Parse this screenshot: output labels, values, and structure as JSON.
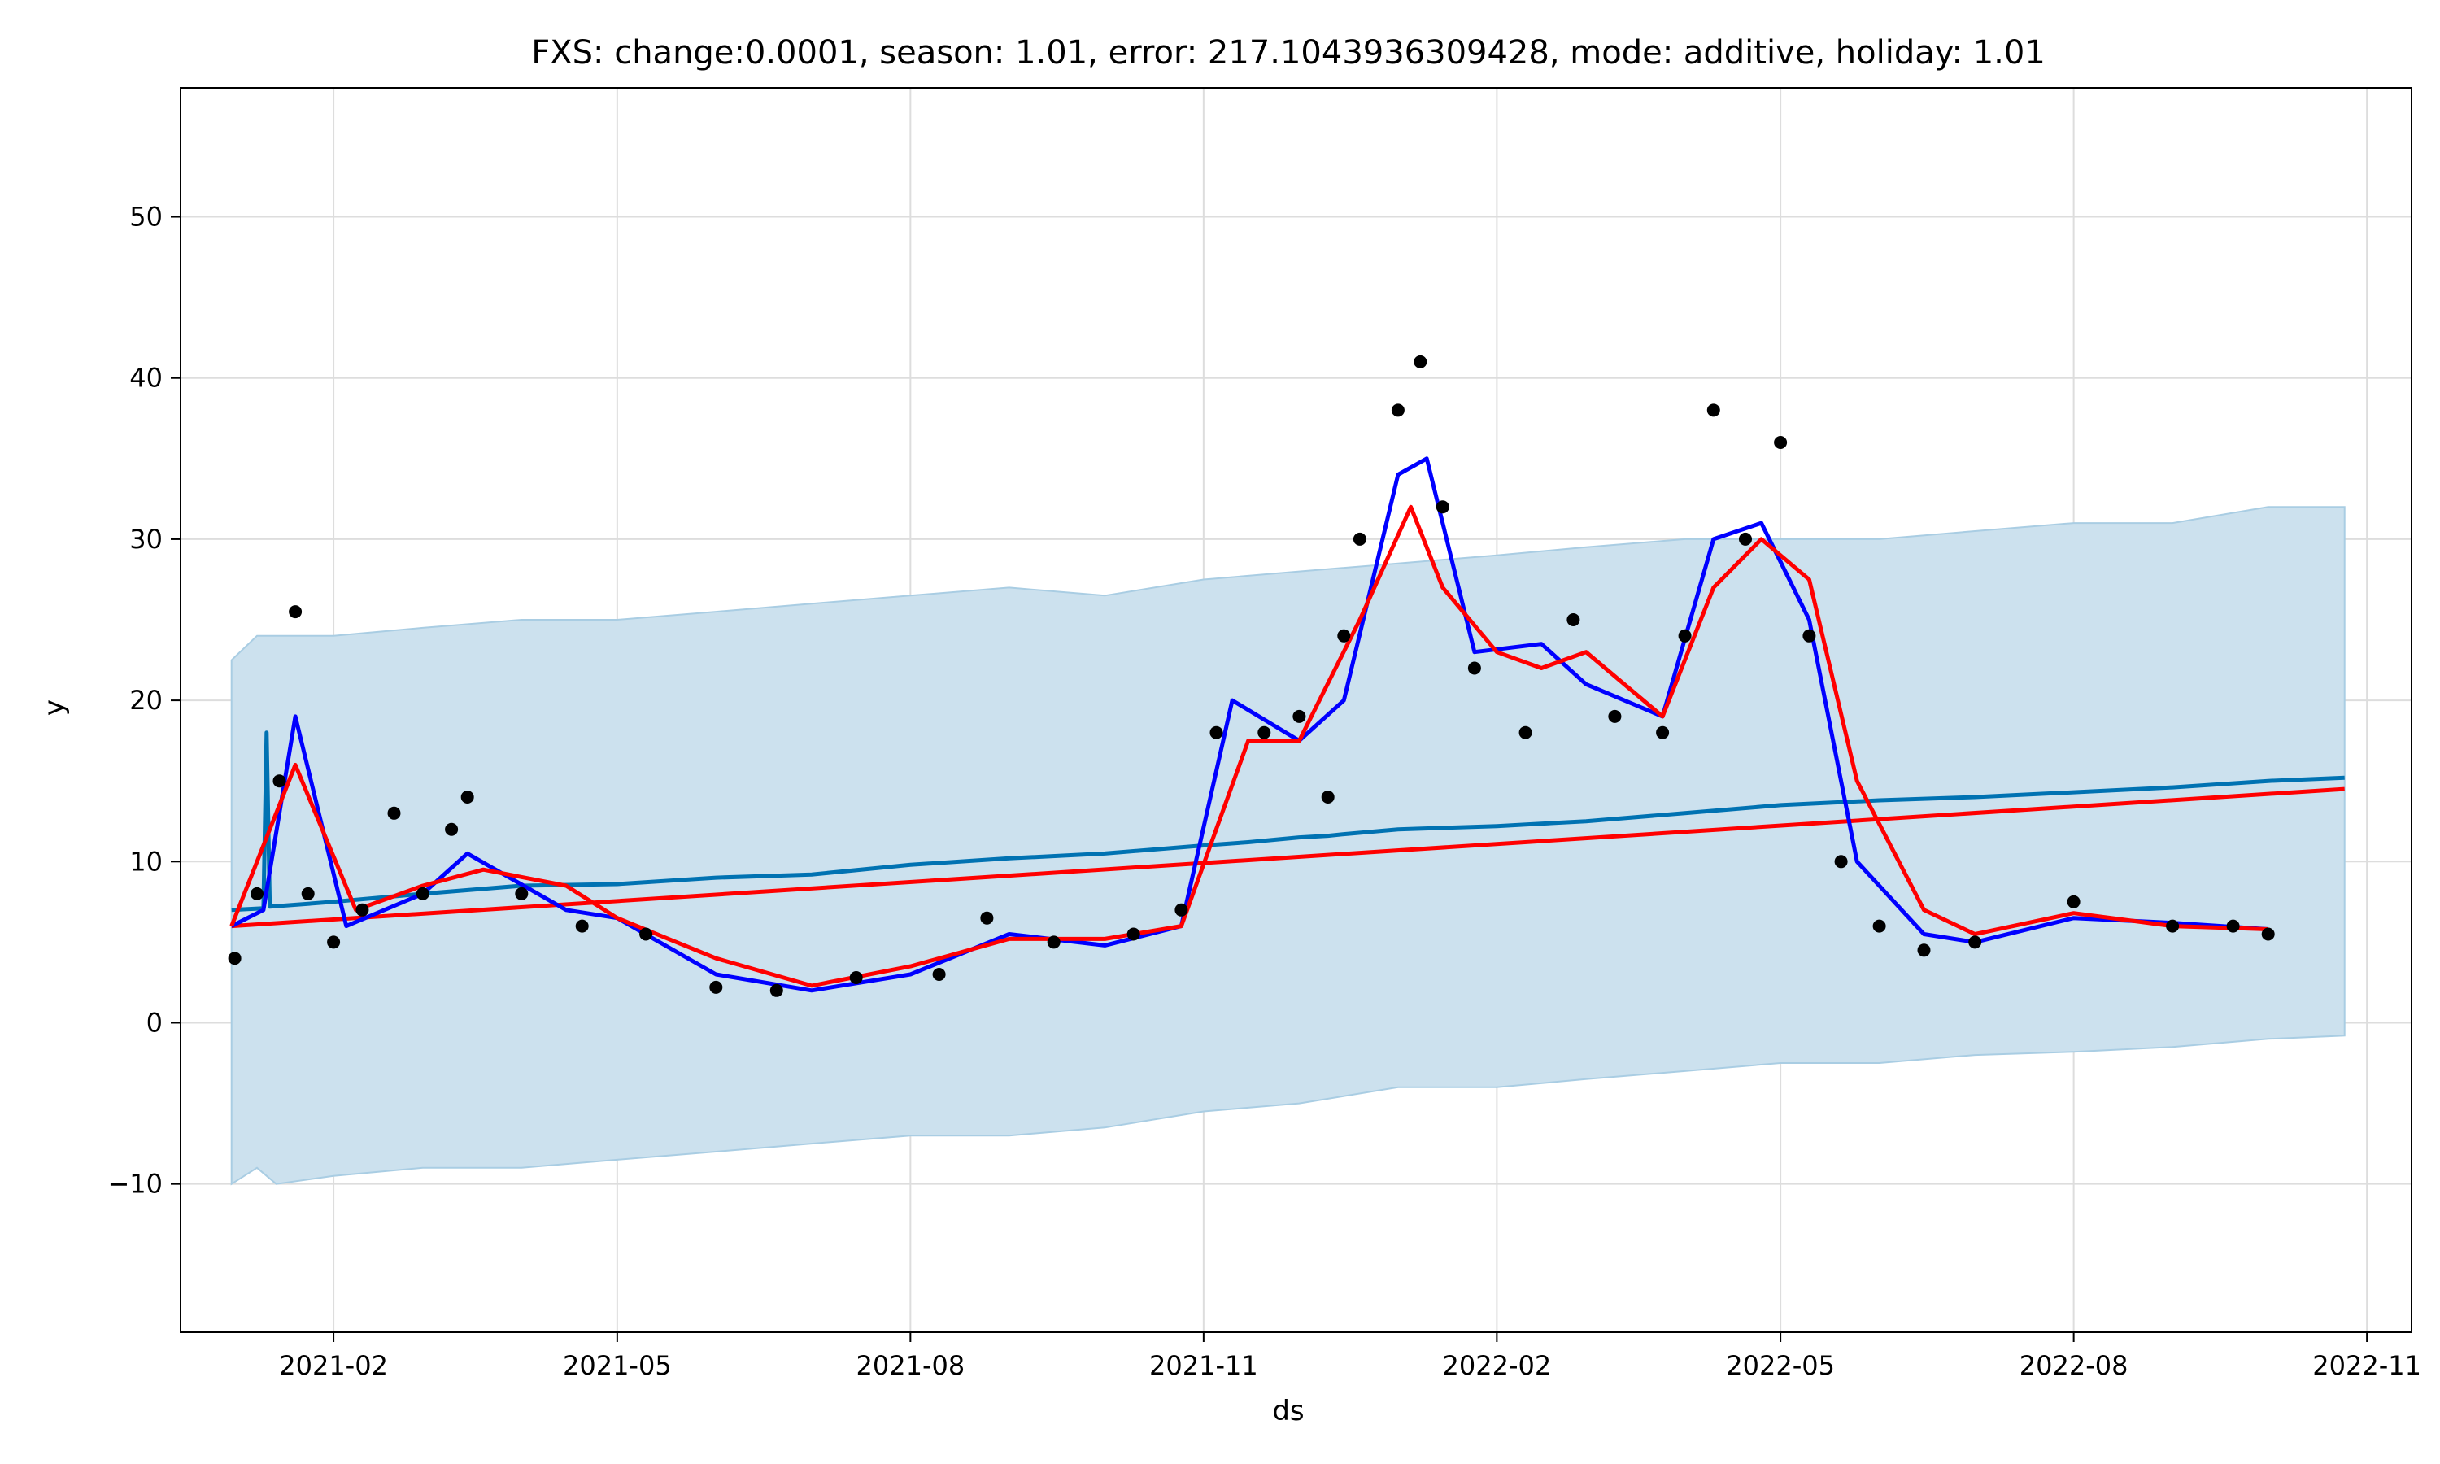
{
  "chart_data": {
    "type": "line",
    "title": "FXS: change:0.0001, season: 1.01, error: 217.1043936309428, mode: additive, holiday: 1.01",
    "xlabel": "ds",
    "ylabel": "y",
    "xlim": [
      "2020-12-15",
      "2022-11-15"
    ],
    "ylim": [
      -19.2,
      58.0
    ],
    "x_ticks": [
      "2021-02",
      "2021-05",
      "2021-08",
      "2021-11",
      "2022-02",
      "2022-05",
      "2022-08",
      "2022-11"
    ],
    "y_ticks": [
      -10,
      0,
      10,
      20,
      30,
      40,
      50
    ],
    "grid": true,
    "colors": {
      "observed": "#000000",
      "forecast": "#0072B2",
      "band": "#cce1ee",
      "band_edge": "#a9cde3",
      "trend": "#ff0000",
      "rolling": "#0000ff",
      "grid": "#dddddd"
    },
    "series": [
      {
        "kind": "band",
        "x": [
          "2020-12-31",
          "2021-01-08",
          "2021-01-14",
          "2021-02-01",
          "2021-03-01",
          "2021-04-01",
          "2021-05-01",
          "2021-06-01",
          "2021-07-01",
          "2021-08-01",
          "2021-09-01",
          "2021-10-01",
          "2021-11-01",
          "2021-12-01",
          "2022-01-01",
          "2022-02-01",
          "2022-03-01",
          "2022-04-01",
          "2022-05-01",
          "2022-06-01",
          "2022-07-01",
          "2022-08-01",
          "2022-09-01",
          "2022-10-01",
          "2022-10-25"
        ],
        "lower": [
          -10,
          -9,
          -10,
          -9.5,
          -9,
          -9,
          -8.5,
          -8,
          -7.5,
          -7,
          -7,
          -6.5,
          -5.5,
          -5,
          -4,
          -4,
          -3.5,
          -3,
          -2.5,
          -2.5,
          -2,
          -1.8,
          -1.5,
          -1,
          -0.8
        ],
        "upper": [
          22.5,
          24,
          24,
          24,
          24.5,
          25,
          25,
          25.5,
          26,
          26.5,
          27,
          26.5,
          27.5,
          28,
          28.5,
          29,
          29.5,
          30,
          30,
          30,
          30.5,
          31,
          31,
          32,
          32
        ]
      },
      {
        "kind": "line",
        "x": [
          "2020-12-31",
          "2021-01-10",
          "2021-01-11",
          "2021-01-12",
          "2021-02-01",
          "2021-03-01",
          "2021-04-01",
          "2021-05-01",
          "2021-06-01",
          "2021-07-01",
          "2021-08-01",
          "2021-09-01",
          "2021-10-01",
          "2021-11-01",
          "2021-11-15",
          "2021-12-01",
          "2021-12-10",
          "2021-12-15",
          "2022-01-01",
          "2022-02-01",
          "2022-03-01",
          "2022-04-01",
          "2022-05-01",
          "2022-06-01",
          "2022-07-01",
          "2022-08-01",
          "2022-09-01",
          "2022-10-01",
          "2022-10-25"
        ],
        "values": [
          7,
          7.1,
          18,
          7.2,
          7.5,
          8,
          8.5,
          8.6,
          9,
          9.2,
          9.8,
          10.2,
          10.5,
          11,
          11.2,
          11.5,
          11.6,
          11.7,
          12,
          12.2,
          12.5,
          13,
          13.5,
          13.8,
          14,
          14.3,
          14.6,
          15,
          15.2
        ]
      },
      {
        "kind": "line",
        "x": [
          "2020-12-31",
          "2022-10-25"
        ],
        "values": [
          6,
          14.5
        ]
      },
      {
        "kind": "line",
        "x": [
          "2020-12-31",
          "2021-01-10",
          "2021-01-20",
          "2021-02-05",
          "2021-03-01",
          "2021-03-15",
          "2021-04-15",
          "2021-05-01",
          "2021-06-01",
          "2021-07-01",
          "2021-08-01",
          "2021-09-01",
          "2021-10-01",
          "2021-10-25",
          "2021-11-10",
          "2021-12-01",
          "2021-12-15",
          "2022-01-01",
          "2022-01-10",
          "2022-01-25",
          "2022-02-15",
          "2022-03-01",
          "2022-03-25",
          "2022-04-10",
          "2022-04-25",
          "2022-05-10",
          "2022-05-25",
          "2022-06-15",
          "2022-07-01",
          "2022-08-01",
          "2022-09-01",
          "2022-10-01"
        ],
        "values": [
          6,
          7,
          19,
          6,
          8,
          10.5,
          7,
          6.5,
          3,
          2,
          3,
          5.5,
          4.8,
          6,
          20,
          17.5,
          20,
          34,
          35,
          23,
          23.5,
          21,
          19,
          30,
          31,
          25,
          10,
          5.5,
          5,
          6.5,
          6.2,
          5.8
        ]
      },
      {
        "kind": "line",
        "x": [
          "2020-12-31",
          "2021-01-20",
          "2021-02-08",
          "2021-03-01",
          "2021-03-20",
          "2021-04-15",
          "2021-05-01",
          "2021-06-01",
          "2021-07-01",
          "2021-08-01",
          "2021-09-01",
          "2021-10-01",
          "2021-10-25",
          "2021-11-15",
          "2021-12-01",
          "2021-12-20",
          "2022-01-05",
          "2022-01-15",
          "2022-02-01",
          "2022-02-15",
          "2022-03-01",
          "2022-03-25",
          "2022-04-10",
          "2022-04-25",
          "2022-05-10",
          "2022-05-25",
          "2022-06-15",
          "2022-07-01",
          "2022-08-01",
          "2022-09-01",
          "2022-10-01"
        ],
        "values": [
          6,
          16,
          7,
          8.5,
          9.5,
          8.5,
          6.5,
          4,
          2.3,
          3.5,
          5.2,
          5.2,
          6,
          17.5,
          17.5,
          25,
          32,
          27,
          23,
          22,
          23,
          19,
          27,
          30,
          27.5,
          15,
          7,
          5.5,
          6.8,
          6,
          5.8
        ]
      },
      {
        "kind": "scatter",
        "x": [
          "2021-01-01",
          "2021-01-08",
          "2021-01-15",
          "2021-01-20",
          "2021-01-24",
          "2021-02-01",
          "2021-02-10",
          "2021-02-20",
          "2021-03-01",
          "2021-03-10",
          "2021-03-15",
          "2021-04-01",
          "2021-04-20",
          "2021-05-10",
          "2021-06-01",
          "2021-06-20",
          "2021-07-15",
          "2021-08-10",
          "2021-08-25",
          "2021-09-15",
          "2021-10-10",
          "2021-10-25",
          "2021-11-05",
          "2021-11-20",
          "2021-12-01",
          "2021-12-10",
          "2021-12-15",
          "2021-12-20",
          "2022-01-01",
          "2022-01-08",
          "2022-01-15",
          "2022-01-25",
          "2022-02-10",
          "2022-02-25",
          "2022-03-10",
          "2022-03-25",
          "2022-04-01",
          "2022-04-10",
          "2022-04-20",
          "2022-05-01",
          "2022-05-10",
          "2022-05-20",
          "2022-06-01",
          "2022-06-15",
          "2022-07-01",
          "2022-08-01",
          "2022-09-01",
          "2022-09-20",
          "2022-10-01"
        ],
        "values": [
          4,
          8,
          15,
          25.5,
          8,
          5,
          7,
          13,
          8,
          12,
          14,
          8,
          6,
          5.5,
          2.2,
          2,
          2.8,
          3,
          6.5,
          5,
          5.5,
          7,
          18,
          18,
          19,
          14,
          24,
          30,
          38,
          41,
          32,
          22,
          18,
          25,
          19,
          18,
          24,
          38,
          30,
          36,
          24,
          10,
          6,
          4.5,
          5,
          7.5,
          6,
          6,
          5.5
        ]
      }
    ]
  }
}
